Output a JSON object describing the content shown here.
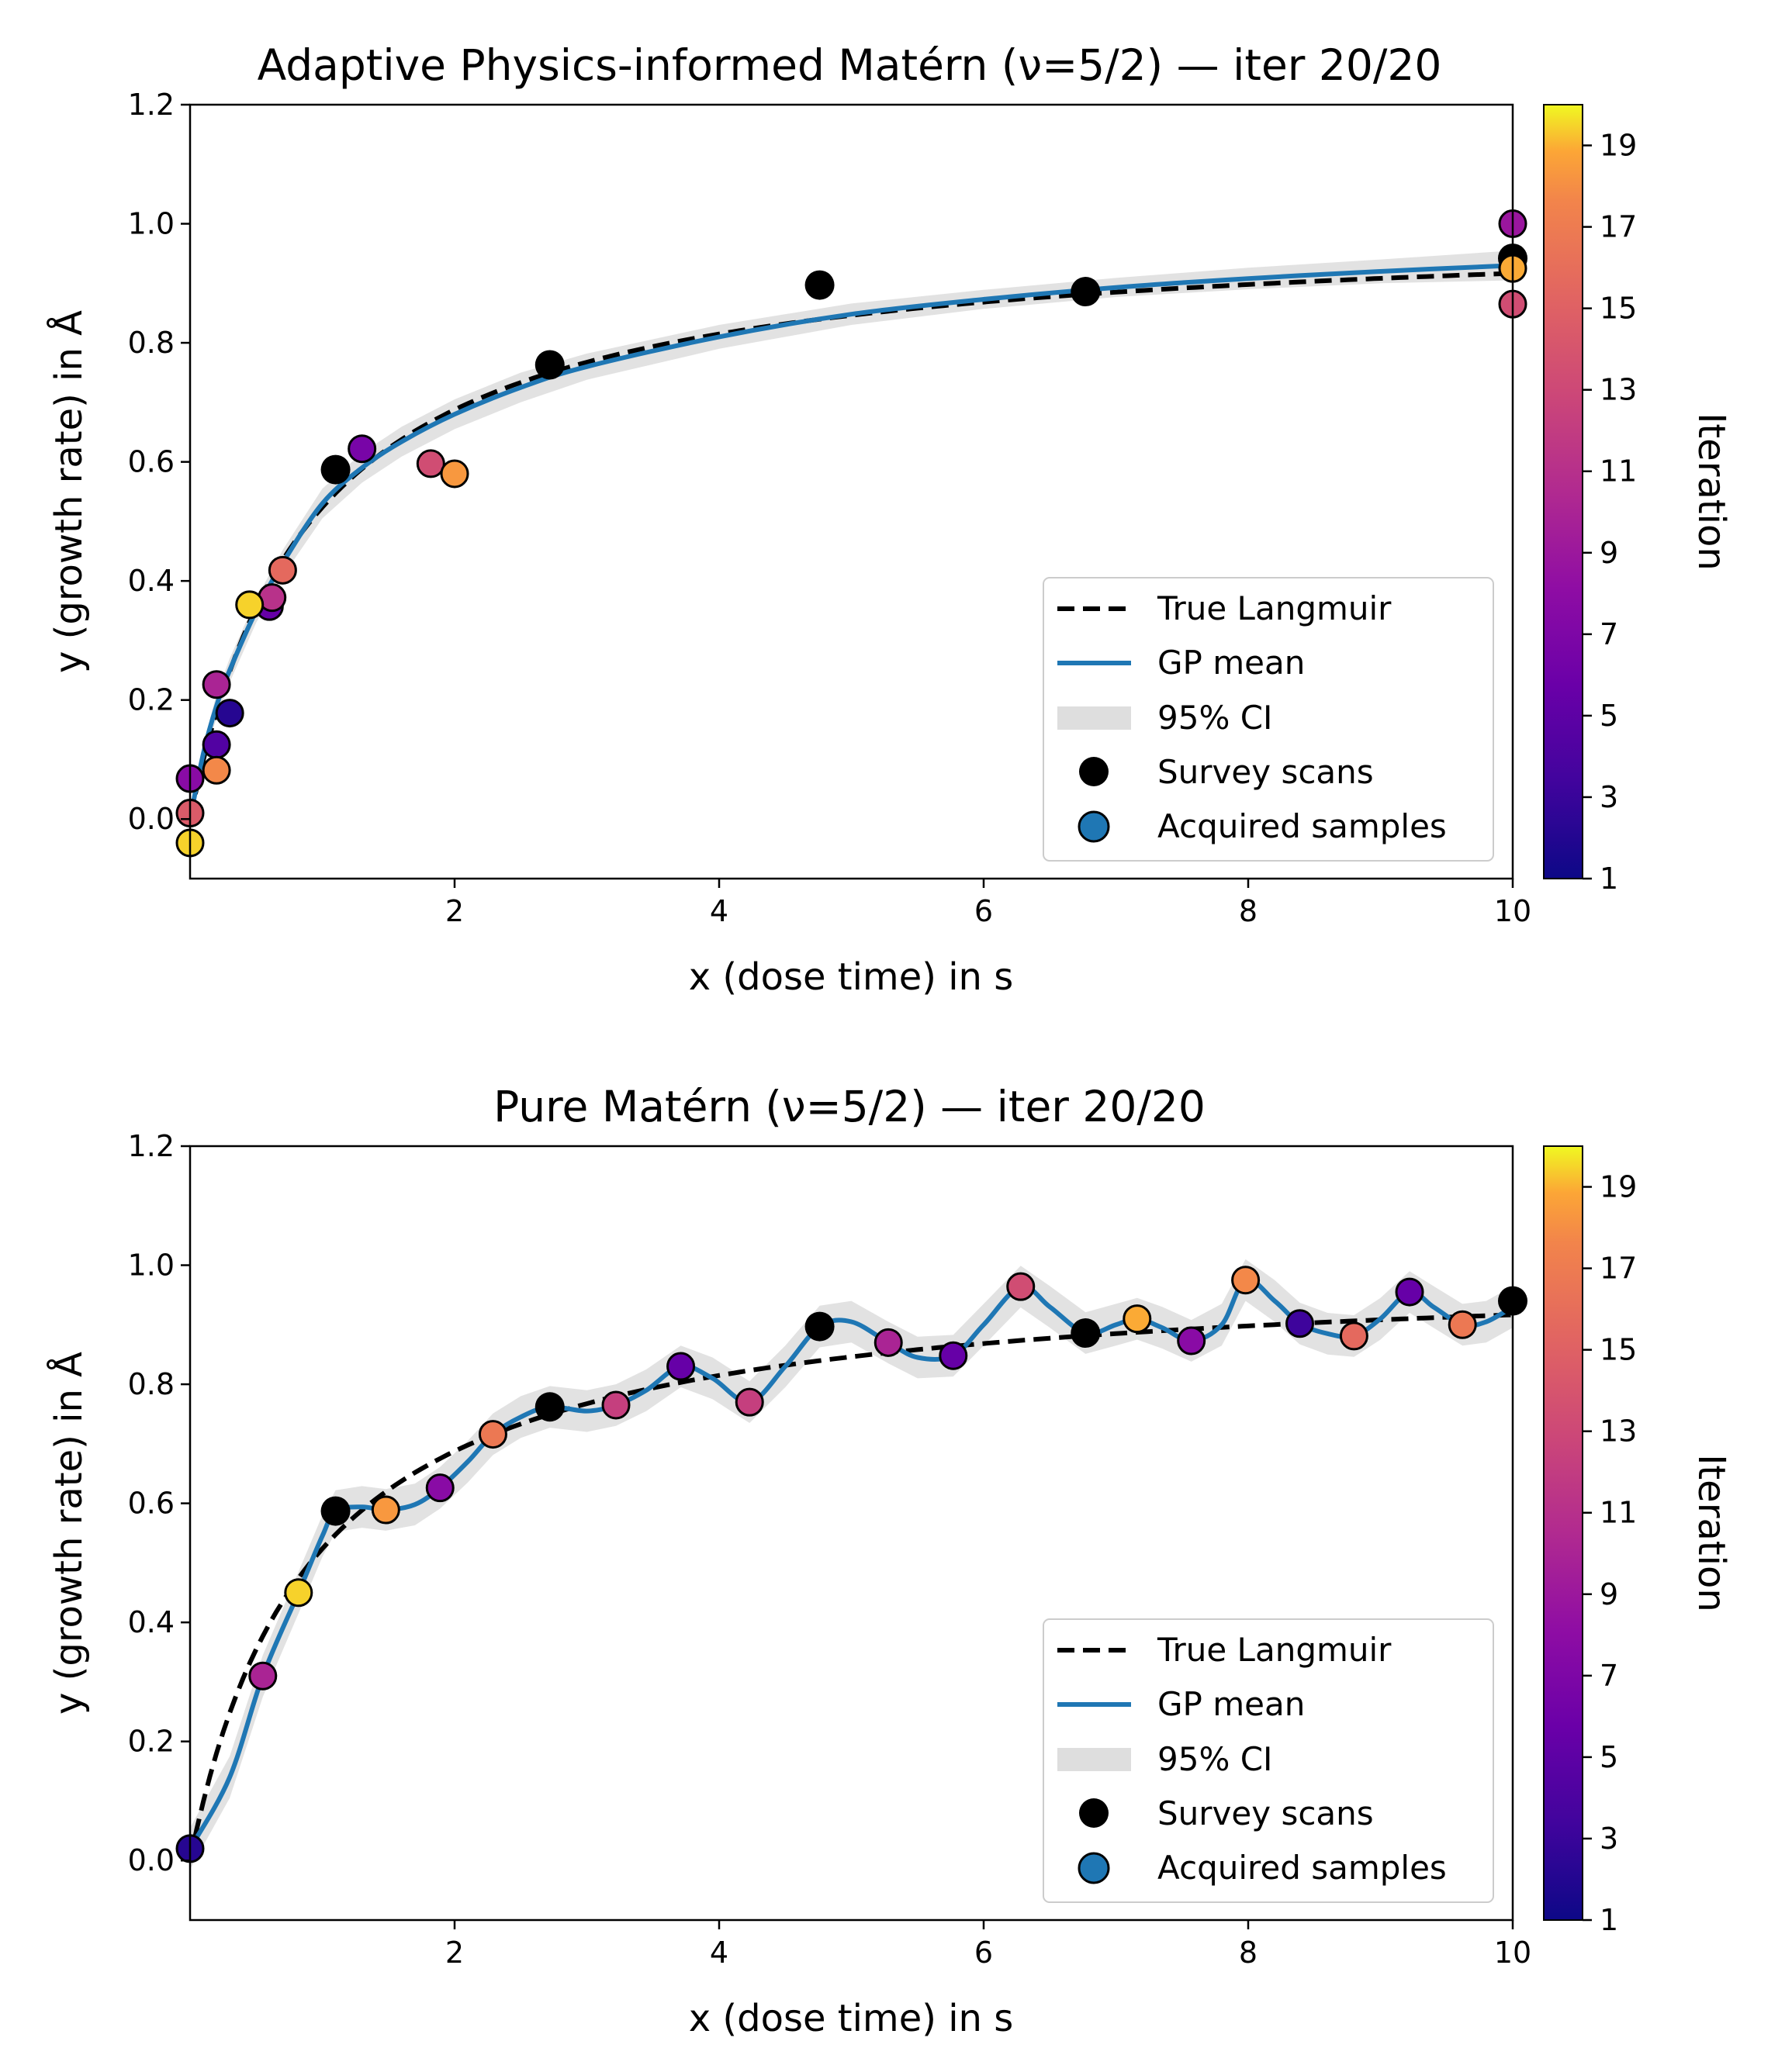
{
  "chart_data": [
    {
      "type": "scatter",
      "title": "Adaptive Physics-informed Matérn (ν=5/2) — iter 20/20",
      "xlabel": "x (dose time) in s",
      "ylabel": "y (growth rate) in Å",
      "xlim": [
        0,
        10
      ],
      "ylim": [
        -0.1,
        1.2
      ],
      "xticks": [
        2,
        4,
        6,
        8,
        10
      ],
      "yticks": [
        0.0,
        0.2,
        0.4,
        0.6,
        0.8,
        1.0,
        1.2
      ],
      "colorbar": {
        "label": "Iteration",
        "ticks": [
          1,
          3,
          5,
          7,
          9,
          11,
          13,
          15,
          17,
          19
        ],
        "range": [
          1,
          20
        ]
      },
      "legend": {
        "position": "lower-right",
        "entries": [
          "True Langmuir",
          "GP mean",
          "95% CI",
          "Survey scans",
          "Acquired samples"
        ]
      },
      "true_curve": {
        "name": "True Langmuir",
        "model": "langmuir",
        "ymax": 1.0,
        "k": 1.1
      },
      "gp_mean": {
        "name": "GP mean",
        "x": [
          0.0,
          0.1,
          0.2,
          0.3,
          0.5,
          0.7,
          1.0,
          1.3,
          1.6,
          2.0,
          2.5,
          3.0,
          4.0,
          5.0,
          6.0,
          7.0,
          8.0,
          9.0,
          10.0
        ],
        "y": [
          0.0,
          0.11,
          0.19,
          0.25,
          0.35,
          0.43,
          0.53,
          0.59,
          0.634,
          0.68,
          0.725,
          0.76,
          0.81,
          0.848,
          0.873,
          0.893,
          0.908,
          0.92,
          0.93
        ],
        "ci_halfwidth": [
          0.01,
          0.015,
          0.02,
          0.02,
          0.02,
          0.022,
          0.025,
          0.025,
          0.025,
          0.025,
          0.025,
          0.022,
          0.02,
          0.018,
          0.016,
          0.016,
          0.018,
          0.02,
          0.025
        ]
      },
      "survey_scans": {
        "name": "Survey scans",
        "points": [
          [
            1.1,
            0.587
          ],
          [
            2.72,
            0.763
          ],
          [
            4.76,
            0.897
          ],
          [
            6.77,
            0.886
          ],
          [
            10.0,
            0.942
          ]
        ]
      },
      "acquired_samples": {
        "name": "Acquired samples",
        "points": [
          [
            0.3,
            0.178,
            2
          ],
          [
            0.2,
            0.125,
            4
          ],
          [
            0.6,
            0.357,
            5
          ],
          [
            1.3,
            0.622,
            6
          ],
          [
            0.0,
            0.068,
            7
          ],
          [
            0.2,
            0.226,
            9
          ],
          [
            10.0,
            1.0,
            8
          ],
          [
            0.62,
            0.372,
            10
          ],
          [
            1.82,
            0.597,
            12
          ],
          [
            0.0,
            0.01,
            13
          ],
          [
            10.0,
            0.865,
            12
          ],
          [
            0.7,
            0.418,
            14
          ],
          [
            0.2,
            0.082,
            16
          ],
          [
            2.0,
            0.58,
            17
          ],
          [
            10.0,
            0.925,
            18
          ],
          [
            0.45,
            0.36,
            19
          ],
          [
            0.0,
            -0.04,
            19
          ]
        ]
      }
    },
    {
      "type": "scatter",
      "title": "Pure Matérn (ν=5/2) — iter 20/20",
      "xlabel": "x (dose time) in s",
      "ylabel": "y (growth rate) in Å",
      "xlim": [
        0,
        10
      ],
      "ylim": [
        -0.1,
        1.2
      ],
      "xticks": [
        2,
        4,
        6,
        8,
        10
      ],
      "yticks": [
        0.0,
        0.2,
        0.4,
        0.6,
        0.8,
        1.0,
        1.2
      ],
      "colorbar": {
        "label": "Iteration",
        "ticks": [
          1,
          3,
          5,
          7,
          9,
          11,
          13,
          15,
          17,
          19
        ],
        "range": [
          1,
          20
        ]
      },
      "legend": {
        "position": "lower-right",
        "entries": [
          "True Langmuir",
          "GP mean",
          "95% CI",
          "Survey scans",
          "Acquired samples"
        ]
      },
      "true_curve": {
        "name": "True Langmuir",
        "model": "langmuir",
        "ymax": 1.0,
        "k": 1.1
      },
      "gp_mean": {
        "name": "GP mean",
        "x": [
          0.0,
          0.3,
          0.55,
          0.82,
          1.0,
          1.1,
          1.3,
          1.48,
          1.7,
          1.89,
          2.1,
          2.29,
          2.5,
          2.72,
          3.0,
          3.22,
          3.45,
          3.71,
          3.95,
          4.23,
          4.5,
          4.76,
          5.0,
          5.28,
          5.5,
          5.77,
          6.0,
          6.28,
          6.5,
          6.77,
          7.0,
          7.16,
          7.35,
          7.57,
          7.8,
          7.98,
          8.2,
          8.39,
          8.6,
          8.8,
          9.0,
          9.22,
          9.4,
          9.62,
          9.8,
          10.0
        ],
        "y": [
          0.02,
          0.14,
          0.31,
          0.45,
          0.545,
          0.587,
          0.594,
          0.589,
          0.598,
          0.626,
          0.67,
          0.716,
          0.745,
          0.762,
          0.755,
          0.765,
          0.79,
          0.83,
          0.81,
          0.77,
          0.83,
          0.897,
          0.905,
          0.87,
          0.845,
          0.848,
          0.9,
          0.964,
          0.93,
          0.886,
          0.9,
          0.91,
          0.895,
          0.873,
          0.9,
          0.975,
          0.94,
          0.902,
          0.885,
          0.881,
          0.91,
          0.955,
          0.93,
          0.9,
          0.905,
          0.93
        ],
        "ci_halfwidth": 0.035
      },
      "survey_scans": {
        "name": "Survey scans",
        "points": [
          [
            1.1,
            0.587
          ],
          [
            2.72,
            0.762
          ],
          [
            4.76,
            0.897
          ],
          [
            6.77,
            0.886
          ],
          [
            10.0,
            0.94
          ]
        ]
      },
      "acquired_samples": {
        "name": "Acquired samples",
        "points": [
          [
            0.0,
            0.02,
            2
          ],
          [
            0.55,
            0.31,
            9
          ],
          [
            0.82,
            0.45,
            19
          ],
          [
            1.48,
            0.589,
            17
          ],
          [
            1.89,
            0.626,
            7
          ],
          [
            2.29,
            0.716,
            15
          ],
          [
            3.22,
            0.765,
            11
          ],
          [
            3.71,
            0.83,
            5
          ],
          [
            4.23,
            0.77,
            11
          ],
          [
            5.28,
            0.87,
            9
          ],
          [
            5.77,
            0.848,
            5
          ],
          [
            6.28,
            0.964,
            12
          ],
          [
            7.16,
            0.91,
            18
          ],
          [
            7.57,
            0.873,
            7
          ],
          [
            7.98,
            0.975,
            16
          ],
          [
            8.39,
            0.902,
            3
          ],
          [
            8.8,
            0.881,
            14
          ],
          [
            9.22,
            0.955,
            5
          ],
          [
            9.62,
            0.9,
            15
          ]
        ]
      }
    }
  ]
}
